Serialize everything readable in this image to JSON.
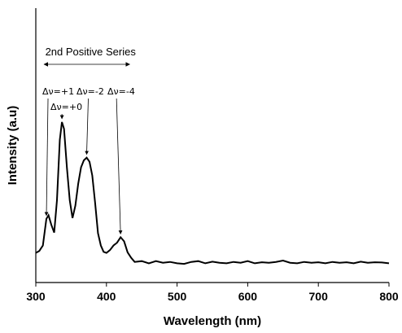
{
  "chart_data": {
    "type": "line",
    "title": "",
    "xlabel": "Wavelength (nm)",
    "ylabel": "Intensity (a.u)",
    "xlim": [
      300,
      800
    ],
    "ylim": [
      0,
      1
    ],
    "x_ticks": [
      "300",
      "400",
      "500",
      "600",
      "700",
      "800"
    ],
    "grid": false,
    "series": [
      {
        "name": "",
        "x": [
          300,
          305,
          310,
          315,
          318,
          322,
          326,
          330,
          334,
          337,
          340,
          344,
          348,
          352,
          356,
          360,
          364,
          368,
          372,
          376,
          380,
          384,
          388,
          392,
          396,
          400,
          405,
          410,
          415,
          420,
          425,
          430,
          435,
          440,
          450,
          460,
          470,
          480,
          490,
          500,
          510,
          520,
          530,
          540,
          550,
          560,
          570,
          580,
          590,
          600,
          610,
          620,
          630,
          640,
          650,
          660,
          670,
          680,
          690,
          700,
          710,
          720,
          730,
          740,
          750,
          760,
          770,
          780,
          790,
          800
        ],
        "y": [
          0.108,
          0.115,
          0.135,
          0.232,
          0.245,
          0.21,
          0.182,
          0.3,
          0.52,
          0.585,
          0.56,
          0.42,
          0.3,
          0.235,
          0.28,
          0.36,
          0.42,
          0.445,
          0.455,
          0.44,
          0.39,
          0.29,
          0.18,
          0.135,
          0.112,
          0.108,
          0.118,
          0.135,
          0.145,
          0.165,
          0.15,
          0.11,
          0.09,
          0.075,
          0.078,
          0.07,
          0.078,
          0.072,
          0.075,
          0.07,
          0.068,
          0.075,
          0.078,
          0.07,
          0.076,
          0.072,
          0.07,
          0.075,
          0.072,
          0.078,
          0.07,
          0.074,
          0.072,
          0.075,
          0.08,
          0.072,
          0.07,
          0.075,
          0.072,
          0.074,
          0.07,
          0.075,
          0.072,
          0.074,
          0.07,
          0.076,
          0.072,
          0.074,
          0.073,
          0.07
        ]
      }
    ],
    "series_range": {
      "label": "2nd Positive Series",
      "x_start": 315,
      "x_end": 433
    },
    "annotations": [
      {
        "label": "Δν=+1",
        "target_x": 315,
        "target_y": 0.232
      },
      {
        "label": "Δν=+0",
        "target_x": 337,
        "target_y": 0.585
      },
      {
        "label": "Δν=-2",
        "target_x": 372,
        "target_y": 0.455
      },
      {
        "label": "Δν=-4",
        "target_x": 420,
        "target_y": 0.165
      }
    ]
  }
}
